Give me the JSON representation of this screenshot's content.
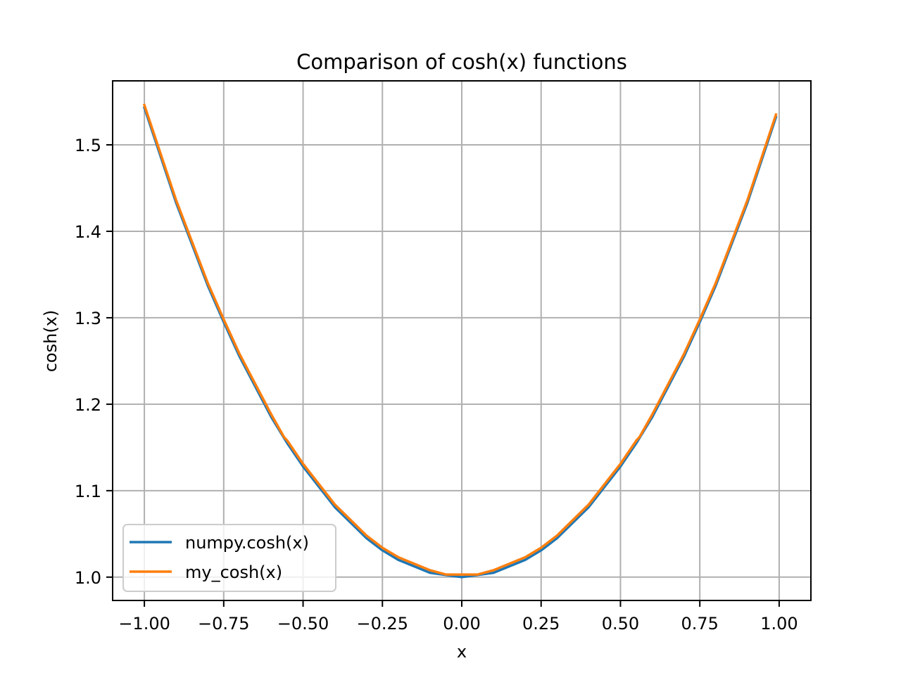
{
  "chart_data": {
    "type": "line",
    "title": "Comparison of cosh(x) functions",
    "xlabel": "x",
    "ylabel": "cosh(x)",
    "xlim": [
      -1.1,
      1.1
    ],
    "ylim": [
      0.973,
      1.574
    ],
    "xticks": [
      -1.0,
      -0.75,
      -0.5,
      -0.25,
      0.0,
      0.25,
      0.5,
      0.75,
      1.0
    ],
    "xtick_labels": [
      "−1.00",
      "−0.75",
      "−0.50",
      "−0.25",
      "0.00",
      "0.25",
      "0.50",
      "0.75",
      "1.00"
    ],
    "yticks": [
      1.0,
      1.1,
      1.2,
      1.3,
      1.4,
      1.5
    ],
    "ytick_labels": [
      "1.0",
      "1.1",
      "1.2",
      "1.3",
      "1.4",
      "1.5"
    ],
    "grid": true,
    "legend_position": "lower left",
    "series": [
      {
        "name": "numpy.cosh(x)",
        "color": "#1f77b4",
        "x": [
          -1.0,
          -0.9,
          -0.8,
          -0.75,
          -0.7,
          -0.6,
          -0.55,
          -0.5,
          -0.4,
          -0.3,
          -0.25,
          -0.2,
          -0.1,
          0.0,
          0.1,
          0.2,
          0.25,
          0.3,
          0.4,
          0.5,
          0.55,
          0.6,
          0.7,
          0.75,
          0.8,
          0.9,
          0.99
        ],
        "y": [
          1.543,
          1.433,
          1.337,
          1.295,
          1.255,
          1.185,
          1.155,
          1.128,
          1.081,
          1.045,
          1.031,
          1.02,
          1.005,
          1.0,
          1.005,
          1.02,
          1.031,
          1.045,
          1.081,
          1.128,
          1.155,
          1.185,
          1.255,
          1.295,
          1.337,
          1.433,
          1.532
        ]
      },
      {
        "name": "my_cosh(x)",
        "color": "#ff7f0e",
        "x": [
          -1.0,
          -0.9,
          -0.8,
          -0.75,
          -0.7,
          -0.6,
          -0.56,
          -0.55,
          -0.5,
          -0.4,
          -0.3,
          -0.25,
          -0.2,
          -0.1,
          -0.05,
          0.0,
          0.05,
          0.1,
          0.2,
          0.25,
          0.3,
          0.4,
          0.5,
          0.55,
          0.56,
          0.6,
          0.7,
          0.75,
          0.8,
          0.9,
          0.99
        ],
        "y": [
          1.546,
          1.436,
          1.34,
          1.298,
          1.258,
          1.188,
          1.162,
          1.158,
          1.131,
          1.084,
          1.048,
          1.034,
          1.023,
          1.008,
          1.003,
          1.003,
          1.003,
          1.008,
          1.023,
          1.034,
          1.048,
          1.084,
          1.131,
          1.158,
          1.162,
          1.188,
          1.258,
          1.298,
          1.34,
          1.436,
          1.535
        ]
      }
    ]
  }
}
